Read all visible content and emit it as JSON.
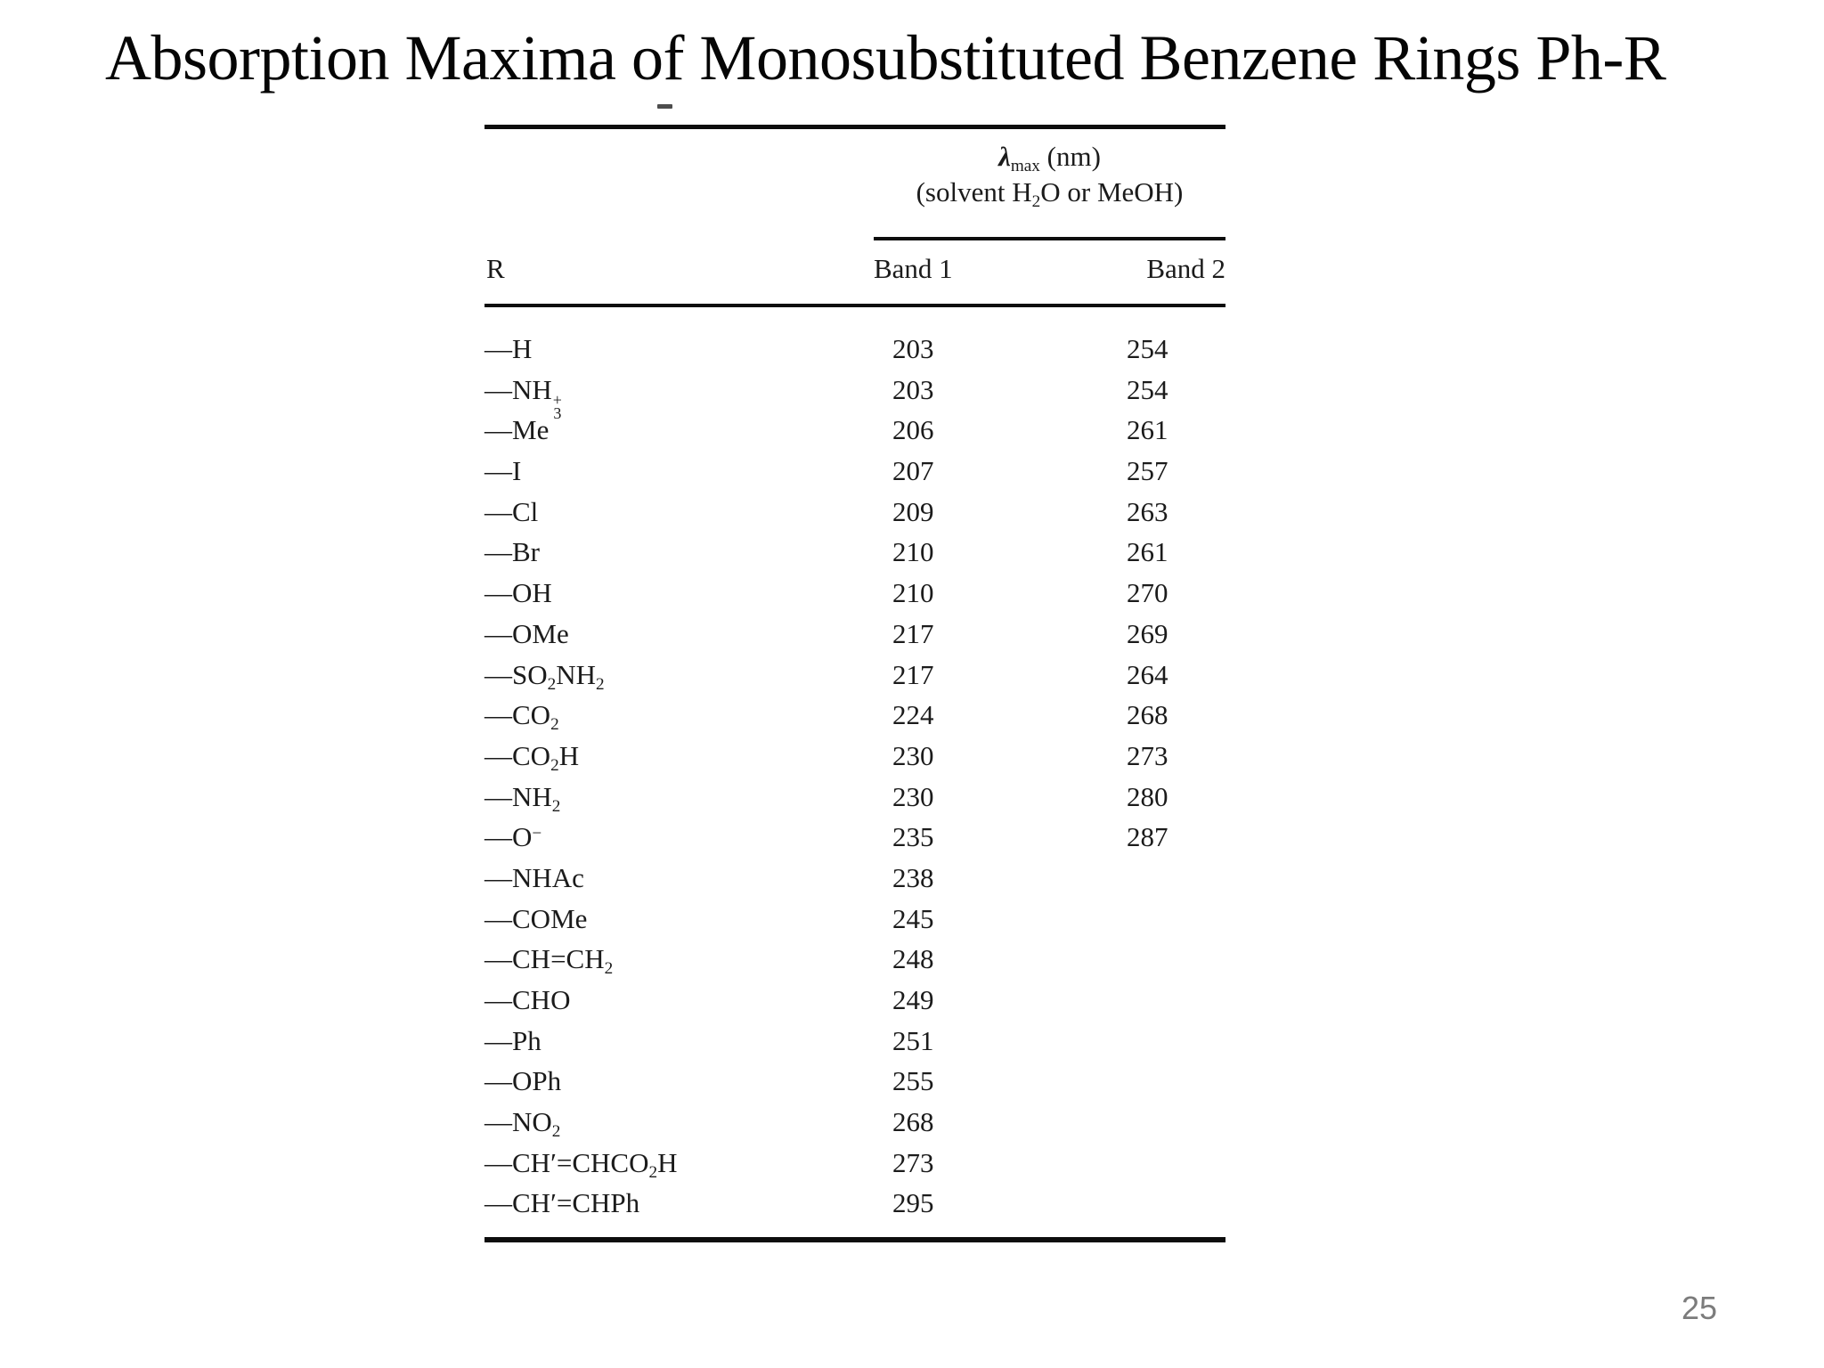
{
  "page": {
    "title": "Absorption Maxima of Monosubstituted Benzene Rings Ph-R",
    "page_number": "25"
  },
  "table": {
    "lambda_header_segments": [
      {
        "t": "λ",
        "cls": "lambda-char"
      },
      {
        "sub": "max"
      },
      {
        "t": " (nm)"
      }
    ],
    "solvent_header_segments": [
      {
        "t": "(solvent H"
      },
      {
        "sub": "2"
      },
      {
        "t": "O or MeOH)"
      }
    ],
    "r_header": "R",
    "band1_header": "Band 1",
    "band2_header": "Band 2",
    "rows": [
      {
        "r": [
          {
            "t": "—H"
          }
        ],
        "band1": "203",
        "band2": "254"
      },
      {
        "r": [
          {
            "t": "—NH"
          },
          {
            "sub": "3",
            "sup": "+"
          }
        ],
        "band1": "203",
        "band2": "254"
      },
      {
        "r": [
          {
            "t": "—Me"
          }
        ],
        "band1": "206",
        "band2": "261"
      },
      {
        "r": [
          {
            "t": "—I"
          }
        ],
        "band1": "207",
        "band2": "257"
      },
      {
        "r": [
          {
            "t": "—Cl"
          }
        ],
        "band1": "209",
        "band2": "263"
      },
      {
        "r": [
          {
            "t": "—Br"
          }
        ],
        "band1": "210",
        "band2": "261"
      },
      {
        "r": [
          {
            "t": "—OH"
          }
        ],
        "band1": "210",
        "band2": "270"
      },
      {
        "r": [
          {
            "t": "—OMe"
          }
        ],
        "band1": "217",
        "band2": "269"
      },
      {
        "r": [
          {
            "t": "—SO"
          },
          {
            "sub": "2"
          },
          {
            "t": "NH"
          },
          {
            "sub": "2"
          }
        ],
        "band1": "217",
        "band2": "264"
      },
      {
        "r": [
          {
            "t": "—CO"
          },
          {
            "sub": "2"
          }
        ],
        "band1": "224",
        "band2": "268"
      },
      {
        "r": [
          {
            "t": "—CO"
          },
          {
            "sub": "2"
          },
          {
            "t": "H"
          }
        ],
        "band1": "230",
        "band2": "273"
      },
      {
        "r": [
          {
            "t": "—NH"
          },
          {
            "sub": "2"
          }
        ],
        "band1": "230",
        "band2": "280"
      },
      {
        "r": [
          {
            "t": "—O"
          },
          {
            "sup": "−"
          }
        ],
        "band1": "235",
        "band2": "287"
      },
      {
        "r": [
          {
            "t": "—NHAc"
          }
        ],
        "band1": "238",
        "band2": ""
      },
      {
        "r": [
          {
            "t": "—COMe"
          }
        ],
        "band1": "245",
        "band2": ""
      },
      {
        "r": [
          {
            "t": "—CH=CH"
          },
          {
            "sub": "2"
          }
        ],
        "band1": "248",
        "band2": ""
      },
      {
        "r": [
          {
            "t": "—CHO"
          }
        ],
        "band1": "249",
        "band2": ""
      },
      {
        "r": [
          {
            "t": "—Ph"
          }
        ],
        "band1": "251",
        "band2": ""
      },
      {
        "r": [
          {
            "t": "—OPh"
          }
        ],
        "band1": "255",
        "band2": ""
      },
      {
        "r": [
          {
            "t": "—NO"
          },
          {
            "sub": "2"
          }
        ],
        "band1": "268",
        "band2": ""
      },
      {
        "r": [
          {
            "t": "—CH′=CHCO"
          },
          {
            "sub": "2"
          },
          {
            "t": "H"
          }
        ],
        "band1": "273",
        "band2": ""
      },
      {
        "r": [
          {
            "t": "—CH′=CHPh"
          }
        ],
        "band1": "295",
        "band2": ""
      }
    ]
  },
  "chart_data": {
    "type": "table",
    "title": "Absorption Maxima of Monosubstituted Benzene Rings Ph-R",
    "columns": [
      "R",
      "Band 1 λmax (nm)",
      "Band 2 λmax (nm)"
    ],
    "note": "(solvent H2O or MeOH)",
    "rows": [
      [
        "-H",
        203,
        254
      ],
      [
        "-NH3+",
        203,
        254
      ],
      [
        "-Me",
        206,
        261
      ],
      [
        "-I",
        207,
        257
      ],
      [
        "-Cl",
        209,
        263
      ],
      [
        "-Br",
        210,
        261
      ],
      [
        "-OH",
        210,
        270
      ],
      [
        "-OMe",
        217,
        269
      ],
      [
        "-SO2NH2",
        217,
        264
      ],
      [
        "-CO2",
        224,
        268
      ],
      [
        "-CO2H",
        230,
        273
      ],
      [
        "-NH2",
        230,
        280
      ],
      [
        "-O-",
        235,
        287
      ],
      [
        "-NHAc",
        238,
        null
      ],
      [
        "-COMe",
        245,
        null
      ],
      [
        "-CH=CH2",
        248,
        null
      ],
      [
        "-CHO",
        249,
        null
      ],
      [
        "-Ph",
        251,
        null
      ],
      [
        "-OPh",
        255,
        null
      ],
      [
        "-NO2",
        268,
        null
      ],
      [
        "-CH'=CHCO2H",
        273,
        null
      ],
      [
        "-CH'=CHPh",
        295,
        null
      ]
    ]
  }
}
